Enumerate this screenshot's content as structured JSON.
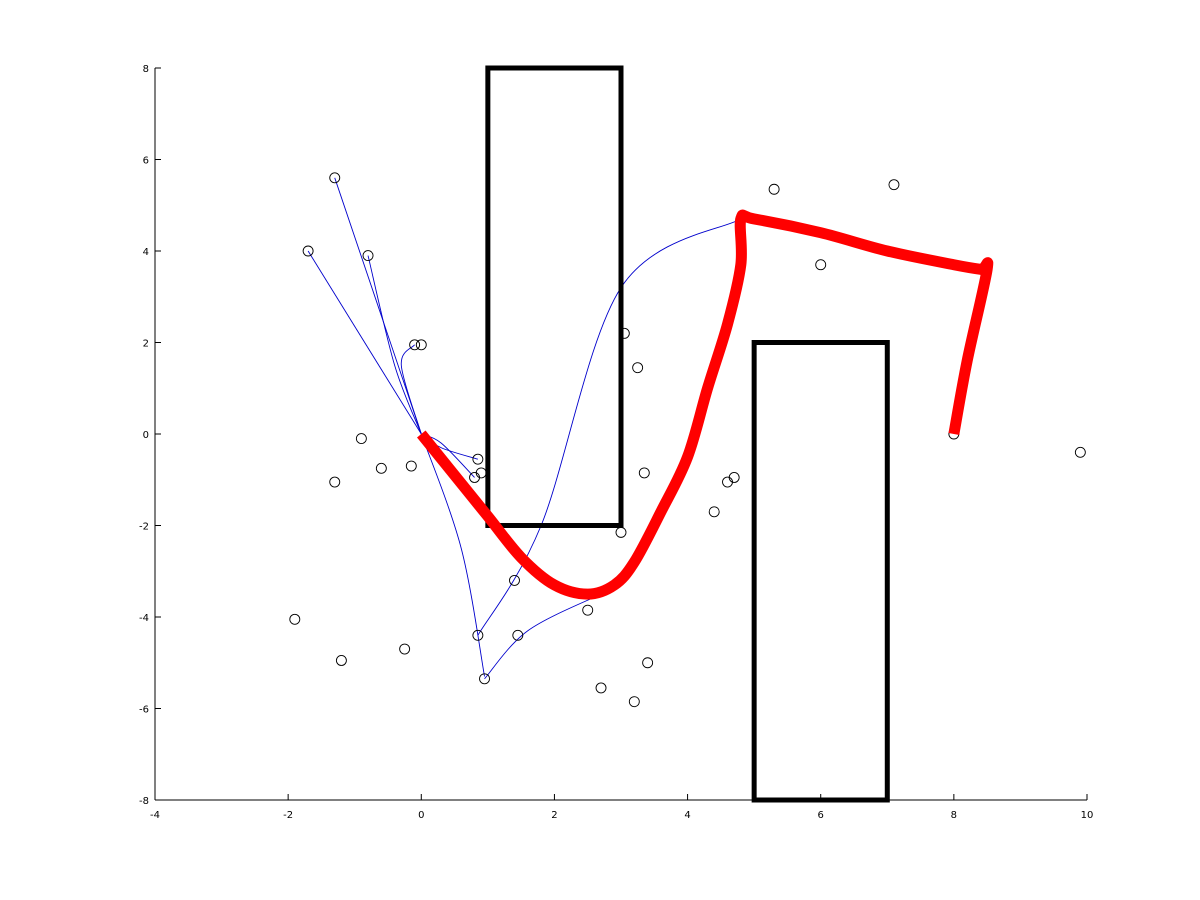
{
  "chart_data": {
    "type": "line",
    "title": "",
    "xlabel": "",
    "ylabel": "",
    "xlim": [
      -4,
      10
    ],
    "ylim": [
      -8,
      8
    ],
    "x_ticks": [
      -4,
      -2,
      0,
      2,
      4,
      6,
      8,
      10
    ],
    "y_ticks": [
      -8,
      -6,
      -4,
      -2,
      0,
      2,
      4,
      6,
      8
    ],
    "x_tick_labels": [
      "-4",
      "-2",
      "0",
      "2",
      "4",
      "6",
      "8",
      "10"
    ],
    "y_tick_labels": [
      "-8",
      "-6",
      "-4",
      "-2",
      "0",
      "2",
      "4",
      "6",
      "8"
    ],
    "grid": false,
    "legend": "none",
    "colors": {
      "tree": "#0000cc",
      "path": "#ff0000",
      "obstacle": "#000000",
      "node": "#000000"
    },
    "obstacles": [
      {
        "name": "obstacle-upper",
        "x": [
          1,
          3
        ],
        "y": [
          -2,
          8
        ]
      },
      {
        "name": "obstacle-lower",
        "x": [
          5,
          7
        ],
        "y": [
          -8,
          2
        ]
      }
    ],
    "series": [
      {
        "type": "path",
        "x": [
          0,
          0.5,
          1.0,
          1.5,
          2.0,
          2.5,
          2.9,
          3.2,
          3.6,
          4.0,
          4.3,
          4.6,
          4.8,
          4.8,
          5.0,
          6.0,
          7.0,
          8.0,
          8.4,
          8.5,
          8.2,
          8.0
        ],
        "y": [
          0,
          -0.9,
          -1.8,
          -2.7,
          -3.3,
          -3.5,
          -3.3,
          -2.8,
          -1.7,
          -0.5,
          1.0,
          2.4,
          3.7,
          4.7,
          4.7,
          4.4,
          4.0,
          3.7,
          3.6,
          3.6,
          1.6,
          0
        ]
      }
    ],
    "nodes": {
      "x": [
        -1.3,
        -1.7,
        -0.8,
        -0.1,
        0.0,
        -0.9,
        -1.3,
        -0.6,
        -0.15,
        -1.9,
        -1.2,
        -0.25,
        0.85,
        0.9,
        0.8,
        1.4,
        1.45,
        0.85,
        0.95,
        2.5,
        3.0,
        3.05,
        3.25,
        3.35,
        2.7,
        3.2,
        3.4,
        4.4,
        4.6,
        4.7,
        5.3,
        6.0,
        7.1,
        8.5,
        9.9,
        8.0,
        4.8
      ],
      "y": [
        5.6,
        4.0,
        3.9,
        1.95,
        1.95,
        -0.1,
        -1.05,
        -0.75,
        -0.7,
        -4.05,
        -4.95,
        -4.7,
        -0.55,
        -0.85,
        -0.95,
        -3.2,
        -4.4,
        -4.4,
        -5.35,
        -3.85,
        -2.15,
        2.2,
        1.45,
        -0.85,
        -5.55,
        -5.85,
        -5.0,
        -1.7,
        -1.05,
        -0.95,
        5.35,
        3.7,
        5.45,
        3.65,
        -0.4,
        0,
        4.7
      ]
    },
    "tree_edges": [
      [
        [
          0,
          0
        ],
        [
          -1.3,
          5.6
        ]
      ],
      [
        [
          0,
          0
        ],
        [
          -1.7,
          4.0
        ]
      ],
      [
        [
          0,
          0
        ],
        [
          -0.4,
          1.5
        ],
        [
          -0.8,
          3.9
        ]
      ],
      [
        [
          0,
          0
        ],
        [
          -0.3,
          1.5
        ],
        [
          -0.1,
          1.95
        ]
      ],
      [
        [
          0,
          0
        ],
        [
          0.3,
          -0.2
        ],
        [
          0.8,
          -0.95
        ]
      ],
      [
        [
          0,
          0
        ],
        [
          0.3,
          -0.3
        ],
        [
          0.85,
          -0.55
        ]
      ],
      [
        [
          0,
          0
        ],
        [
          0.6,
          -2.5
        ],
        [
          0.95,
          -5.3
        ]
      ],
      [
        [
          4.8,
          4.7
        ],
        [
          3.0,
          3.2
        ],
        [
          1.8,
          -2.0
        ],
        [
          0.85,
          -4.4
        ]
      ],
      [
        [
          0.95,
          -5.35
        ],
        [
          1.6,
          -4.3
        ],
        [
          2.7,
          -3.5
        ]
      ]
    ]
  }
}
